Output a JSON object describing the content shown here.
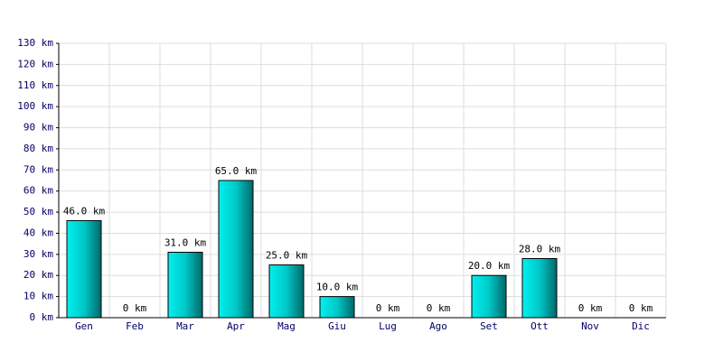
{
  "chart_data": {
    "type": "bar",
    "categories": [
      "Gen",
      "Feb",
      "Mar",
      "Apr",
      "Mag",
      "Giu",
      "Lug",
      "Ago",
      "Set",
      "Ott",
      "Nov",
      "Dic"
    ],
    "values": [
      46,
      0,
      31,
      65,
      25,
      10,
      0,
      0,
      20,
      28,
      0,
      0
    ],
    "value_labels": [
      "46.0 km",
      "0 km",
      "31.0 km",
      "65.0 km",
      "25.0 km",
      "10.0 km",
      "0 km",
      "0 km",
      "20.0 km",
      "28.0 km",
      "0 km",
      "0 km"
    ],
    "color": "#00cccc",
    "ylim": [
      0,
      130
    ],
    "yticks": [
      {
        "value": 0,
        "label": "0 km"
      },
      {
        "value": 10,
        "label": "10 km"
      },
      {
        "value": 20,
        "label": "20 km"
      },
      {
        "value": 30,
        "label": "30 km"
      },
      {
        "value": 40,
        "label": "40 km"
      },
      {
        "value": 50,
        "label": "50 km"
      },
      {
        "value": 60,
        "label": "60 km"
      },
      {
        "value": 70,
        "label": "70 km"
      },
      {
        "value": 80,
        "label": "80 km"
      },
      {
        "value": 90,
        "label": "90 km"
      },
      {
        "value": 100,
        "label": "100 km"
      },
      {
        "value": 110,
        "label": "110 km"
      },
      {
        "value": 120,
        "label": "120 km"
      },
      {
        "value": 130,
        "label": "130 km"
      }
    ],
    "grid": true
  }
}
